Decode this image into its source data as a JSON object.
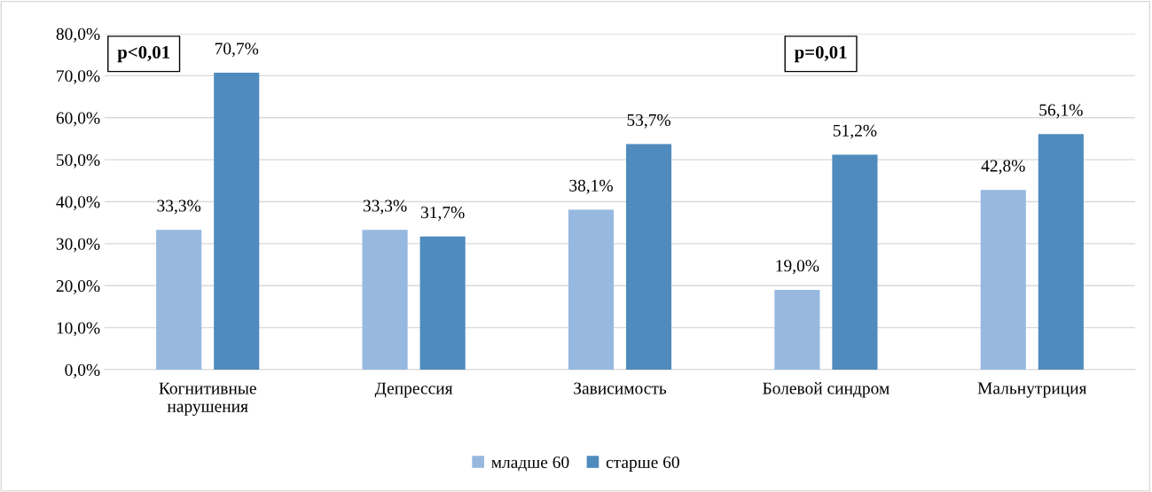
{
  "chart_data": {
    "type": "bar",
    "categories": [
      "Когнитивные\nнарушения",
      "Депрессия",
      "Зависимость",
      "Болевой синдром",
      "Мальнутриция"
    ],
    "series": [
      {
        "name": "младше 60",
        "color": "#97b9e0",
        "values": [
          33.3,
          33.3,
          38.1,
          19.0,
          42.8
        ],
        "value_labels": [
          "33,3%",
          "33,3%",
          "38,1%",
          "19,0%",
          "42,8%"
        ]
      },
      {
        "name": "старше 60",
        "color": "#4f8bbd",
        "values": [
          70.7,
          31.7,
          53.7,
          51.2,
          56.1
        ],
        "value_labels": [
          "70,7%",
          "31,7%",
          "53,7%",
          "51,2%",
          "56,1%"
        ]
      }
    ],
    "ylim": [
      0,
      80
    ],
    "yticks": [
      {
        "value": 0,
        "label": "0,0%"
      },
      {
        "value": 10,
        "label": "10,0%"
      },
      {
        "value": 20,
        "label": "20,0%"
      },
      {
        "value": 30,
        "label": "30,0%"
      },
      {
        "value": 40,
        "label": "40,0%"
      },
      {
        "value": 50,
        "label": "50,0%"
      },
      {
        "value": 60,
        "label": "60,0%"
      },
      {
        "value": 70,
        "label": "70,0%"
      },
      {
        "value": 80,
        "label": "80,0%"
      }
    ],
    "grid": "y",
    "legend": "bottom",
    "annotations": [
      "p<0,01",
      "p=0,01"
    ]
  }
}
